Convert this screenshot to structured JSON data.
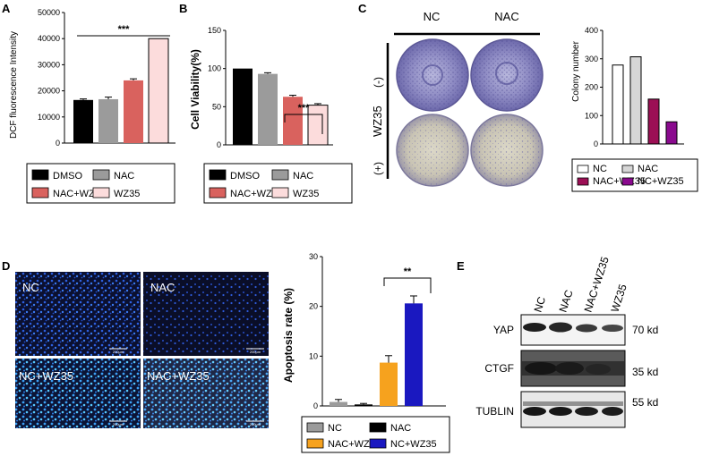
{
  "panels": {
    "A": {
      "label": "A",
      "chart_data": {
        "type": "bar",
        "ylabel": "DCF fluorescence Intensity",
        "categories": [
          "DMSO",
          "NAC",
          "NAC+WZ35",
          "WZ35"
        ],
        "values": [
          16500,
          16800,
          24000,
          40000
        ],
        "errors": [
          400,
          800,
          600,
          0
        ],
        "colors": [
          "#000000",
          "#9b9b9b",
          "#d9625e",
          "#fcdcdc"
        ],
        "yticks": [
          "0",
          "10000",
          "20000",
          "30000",
          "40000",
          "50000"
        ],
        "ylim": [
          0,
          50000
        ],
        "significance": "***",
        "legend": [
          "DMSO",
          "NAC",
          "NAC+WZ35",
          "WZ35"
        ]
      }
    },
    "B": {
      "label": "B",
      "chart_data": {
        "type": "bar",
        "ylabel": "Cell Viability(%)",
        "categories": [
          "DMSO",
          "NAC",
          "NAC+WZ35",
          "WZ35"
        ],
        "values": [
          100,
          93,
          63,
          52
        ],
        "errors": [
          0,
          1.5,
          2,
          2
        ],
        "colors": [
          "#000000",
          "#9b9b9b",
          "#d9625e",
          "#fcdcdc"
        ],
        "yticks": [
          "0",
          "50",
          "100",
          "150"
        ],
        "ylim": [
          0,
          150
        ],
        "significance": "***",
        "legend": [
          "DMSO",
          "NAC",
          "NAC+WZ35",
          "WZ35"
        ]
      }
    },
    "C": {
      "label": "C",
      "col_nc": "NC",
      "col_nac": "NAC",
      "row_label": "WZ35",
      "row_minus": "(-)",
      "row_plus": "(+)",
      "chart_data": {
        "type": "bar",
        "ylabel": "Colony number",
        "categories": [
          "NC",
          "NAC",
          "NAC+WZ35",
          "NC+WZ35"
        ],
        "values": [
          278,
          307,
          158,
          78
        ],
        "colors": [
          "#ffffff",
          "#d6d6d6",
          "#9c0f55",
          "#8a0a8e"
        ],
        "yticks": [
          "0",
          "100",
          "200",
          "300",
          "400"
        ],
        "ylim": [
          0,
          400
        ],
        "legend": [
          "NC",
          "NAC",
          "NAC+WZ35",
          "NC+WZ35"
        ]
      }
    },
    "D": {
      "label": "D",
      "images": [
        "NC",
        "NAC",
        "NC+WZ35",
        "NAC+WZ35"
      ],
      "scale_bar": "200μm",
      "chart_data": {
        "type": "bar",
        "ylabel": "Apoptosis rate (%)",
        "categories": [
          "NC",
          "NAC",
          "NAC+WZ35",
          "NC+WZ35"
        ],
        "values": [
          0.8,
          0.3,
          8.7,
          20.6
        ],
        "errors": [
          0.5,
          0.2,
          1.4,
          1.5
        ],
        "colors": [
          "#9b9b9b",
          "#000000",
          "#f6a21e",
          "#1a18c0"
        ],
        "yticks": [
          "0",
          "10",
          "20",
          "30"
        ],
        "ylim": [
          0,
          30
        ],
        "significance": "**",
        "legend": [
          "NC",
          "NAC",
          "NAC+WZ35",
          "NC+WZ35"
        ]
      }
    },
    "E": {
      "label": "E",
      "lanes": [
        "NC",
        "NAC",
        "NAC+WZ35",
        "WZ35"
      ],
      "rows": [
        {
          "name": "YAP",
          "size": "70 kd"
        },
        {
          "name": "CTGF",
          "size": "35 kd"
        },
        {
          "name": "TUBLIN",
          "size": "55 kd"
        }
      ]
    }
  }
}
